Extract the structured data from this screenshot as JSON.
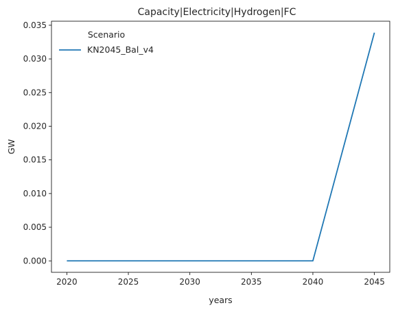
{
  "chart_data": {
    "type": "line",
    "title": "Capacity|Electricity|Hydrogen|FC",
    "xlabel": "years",
    "ylabel": "GW",
    "x": [
      2020,
      2025,
      2030,
      2035,
      2040,
      2045
    ],
    "xticks": [
      "2020",
      "2025",
      "2030",
      "2035",
      "2040",
      "2045"
    ],
    "yticks": [
      "0.000",
      "0.005",
      "0.010",
      "0.015",
      "0.020",
      "0.025",
      "0.030",
      "0.035"
    ],
    "xlim": [
      2018.75,
      2046.25
    ],
    "ylim": [
      -0.0017,
      0.0356
    ],
    "grid": false,
    "legend": {
      "title": "Scenario",
      "placement": "upper left"
    },
    "series": [
      {
        "name": "KN2045_Bal_v4",
        "color": "#1f77b4",
        "values": [
          0.0,
          0.0,
          0.0,
          0.0,
          0.0,
          0.0339
        ]
      }
    ]
  }
}
